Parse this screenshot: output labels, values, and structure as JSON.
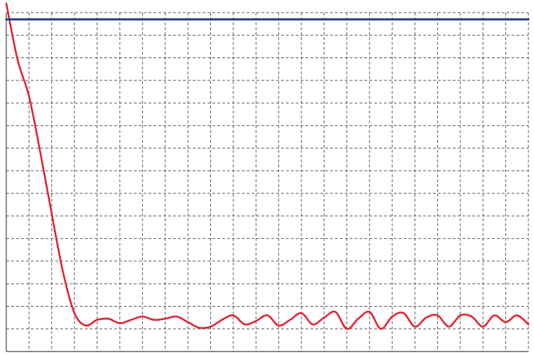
{
  "chart_data": {
    "type": "line",
    "title": "",
    "xlabel": "",
    "ylabel": "",
    "xlim": [
      0,
      23
    ],
    "ylim": [
      0,
      15
    ],
    "grid": true,
    "grid_style": "dashed",
    "x_divisions": 23,
    "y_divisions": 15,
    "legend": "none",
    "series": [
      {
        "color": "#e8202e",
        "x": [
          0,
          0.5,
          1,
          1.5,
          2,
          2.5,
          3,
          3.5,
          4,
          4.5,
          5,
          5.5,
          6,
          6.5,
          7,
          7.5,
          8,
          8.5,
          9,
          9.5,
          10,
          10.5,
          11,
          11.5,
          12,
          12.5,
          13,
          13.5,
          14,
          14.5,
          15,
          15.5,
          16,
          16.5,
          17,
          17.5,
          18,
          18.5,
          19,
          19.5,
          20,
          20.5,
          21,
          21.5,
          22,
          22.5,
          23
        ],
        "values": [
          15.4,
          12.9,
          11.3,
          8.8,
          6.1,
          3.5,
          1.7,
          1.15,
          1.4,
          1.45,
          1.25,
          1.4,
          1.55,
          1.4,
          1.45,
          1.55,
          1.3,
          1.05,
          1.1,
          1.4,
          1.6,
          1.2,
          1.35,
          1.6,
          1.15,
          1.4,
          1.7,
          1.2,
          1.5,
          1.75,
          1.0,
          1.45,
          1.75,
          1.0,
          1.55,
          1.7,
          1.1,
          1.5,
          1.6,
          1.1,
          1.6,
          1.55,
          1.1,
          1.6,
          1.3,
          1.6,
          1.2
        ]
      },
      {
        "color": "#2e4382",
        "x": [
          0,
          23
        ],
        "values": [
          14.7,
          14.7
        ]
      }
    ]
  }
}
